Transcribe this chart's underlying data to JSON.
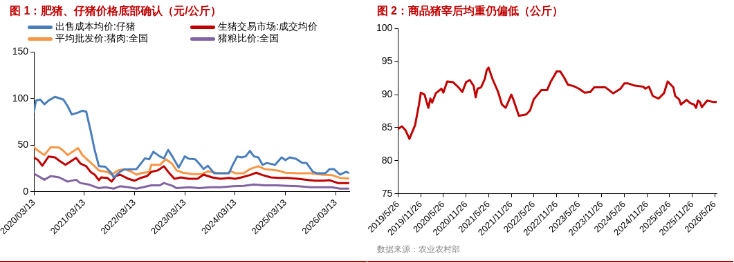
{
  "chart_data": [
    {
      "type": "line",
      "title": "图 1：肥猪、仔猪价格底部确认（元/公斤）",
      "legend": "top",
      "marker": "none",
      "grid": false,
      "xlim": [
        "2020-03-13",
        "2026-06-20"
      ],
      "ylim": [
        0,
        150
      ],
      "yticks": [
        0,
        50,
        100,
        150
      ],
      "xticks": [
        {
          "value": "2020-03-13",
          "label": "2020/03/13"
        },
        {
          "value": "2021-03-13",
          "label": "2021/03/13"
        },
        {
          "value": "2022-03-13",
          "label": "2022/03/13"
        },
        {
          "value": "2023-03-13",
          "label": "2023/03/13"
        },
        {
          "value": "2024-03-13",
          "label": "2024/03/13"
        },
        {
          "value": "2025-03-13",
          "label": "2025/03/13"
        },
        {
          "value": "2026-03-13",
          "label": "2026/03/13"
        }
      ],
      "series": [
        {
          "name": "出售成本均价:仔猪",
          "color": "#4a7ebb",
          "x": [
            "2020-03-13",
            "2020-03-28",
            "2020-04-28",
            "2020-05-28",
            "2020-06-28",
            "2020-08-13",
            "2020-10-13",
            "2020-11-13",
            "2020-12-13",
            "2021-01-28",
            "2021-02-28",
            "2021-03-28",
            "2021-04-28",
            "2021-05-28",
            "2021-06-28",
            "2021-08-13",
            "2021-09-28",
            "2021-10-13",
            "2021-11-28",
            "2021-12-28",
            "2022-03-28",
            "2022-04-13",
            "2022-05-28",
            "2022-06-28",
            "2022-07-28",
            "2022-09-13",
            "2022-10-13",
            "2022-11-13",
            "2022-12-13",
            "2023-01-28",
            "2023-03-13",
            "2023-04-13",
            "2023-05-28",
            "2023-06-28",
            "2023-07-28",
            "2023-08-28",
            "2023-10-13",
            "2023-11-28",
            "2024-01-28",
            "2024-02-28",
            "2024-03-28",
            "2024-04-28",
            "2024-05-28",
            "2024-06-28",
            "2024-07-28",
            "2024-08-28",
            "2024-09-28",
            "2024-10-28",
            "2024-12-28",
            "2025-02-13",
            "2025-03-13",
            "2025-04-13",
            "2025-05-28",
            "2025-07-13",
            "2025-08-13",
            "2025-09-28",
            "2025-10-28",
            "2025-12-28",
            "2026-01-28",
            "2026-02-28",
            "2026-04-13",
            "2026-05-28",
            "2026-06-13"
          ],
          "values": [
            86,
            98,
            99,
            94,
            98,
            102,
            99,
            92,
            83,
            85,
            87,
            86,
            66,
            45,
            27.5,
            27,
            20,
            15.5,
            21.5,
            24,
            24.5,
            27.5,
            36,
            35,
            43,
            38,
            36,
            45,
            38,
            26,
            38,
            35.5,
            35,
            30,
            24.5,
            28,
            20,
            20,
            20,
            30,
            38,
            37,
            38,
            44,
            38,
            37,
            29,
            31,
            29,
            37,
            34,
            37,
            35.5,
            31,
            31,
            21.5,
            20,
            20,
            24.5,
            24.5,
            18.5,
            21.5,
            20.5
          ]
        },
        {
          "name": "生猪交易市场:成交均价",
          "color": "#c00000",
          "x": [
            "2020-03-13",
            "2020-04-13",
            "2020-05-13",
            "2020-06-28",
            "2020-08-13",
            "2020-09-13",
            "2020-10-28",
            "2020-11-28",
            "2021-01-13",
            "2021-02-13",
            "2021-03-28",
            "2021-04-28",
            "2021-05-28",
            "2021-06-28",
            "2021-07-13",
            "2021-08-28",
            "2021-09-28",
            "2021-10-28",
            "2021-11-28",
            "2022-01-28",
            "2022-03-13",
            "2022-04-28",
            "2022-06-13",
            "2022-07-13",
            "2022-08-28",
            "2022-10-13",
            "2022-11-13",
            "2022-12-28",
            "2023-02-13",
            "2023-04-13",
            "2023-06-13",
            "2023-07-28",
            "2023-09-28",
            "2023-11-28",
            "2024-01-28",
            "2024-03-13",
            "2024-04-28",
            "2024-06-28",
            "2024-08-13",
            "2024-09-28",
            "2024-11-28",
            "2025-01-28",
            "2025-03-28",
            "2025-06-13",
            "2025-08-13",
            "2025-10-13",
            "2025-12-13",
            "2026-01-28",
            "2026-03-28",
            "2026-06-13"
          ],
          "values": [
            37,
            34,
            28,
            38,
            37,
            33.5,
            29,
            32,
            36.5,
            30.5,
            27.5,
            21.5,
            18.5,
            12.5,
            15.5,
            15,
            11,
            17,
            18.5,
            14,
            12,
            15,
            17,
            21.5,
            23,
            27.5,
            21.5,
            14,
            15.5,
            14,
            14,
            18.5,
            15.5,
            14,
            15,
            14,
            15.5,
            18,
            20.5,
            18,
            15.5,
            15,
            15,
            14,
            13,
            12,
            12,
            12.5,
            9.5,
            9.5
          ]
        },
        {
          "name": "平均批发价:猪肉:全国",
          "color": "#f79646",
          "x": [
            "2020-03-13",
            "2020-04-13",
            "2020-05-28",
            "2020-07-13",
            "2020-09-13",
            "2020-10-13",
            "2020-11-13",
            "2020-12-13",
            "2021-01-28",
            "2021-02-28",
            "2021-04-13",
            "2021-05-28",
            "2021-06-28",
            "2021-08-28",
            "2021-09-28",
            "2021-11-13",
            "2021-12-28",
            "2022-02-13",
            "2022-03-28",
            "2022-04-28",
            "2022-06-28",
            "2022-07-13",
            "2022-09-13",
            "2022-10-28",
            "2022-12-13",
            "2023-01-13",
            "2023-02-28",
            "2023-05-13",
            "2023-07-13",
            "2023-08-28",
            "2023-11-13",
            "2024-01-13",
            "2024-02-13",
            "2024-03-13",
            "2024-05-13",
            "2024-06-28",
            "2024-08-28",
            "2024-10-13",
            "2025-01-13",
            "2025-03-13",
            "2025-06-13",
            "2025-09-13",
            "2025-11-28",
            "2026-02-13",
            "2026-04-13",
            "2026-06-13"
          ],
          "values": [
            48,
            44,
            39.5,
            48,
            47.5,
            44,
            39.5,
            42.5,
            47,
            39.5,
            33.5,
            27.5,
            23,
            21.5,
            18.5,
            23,
            24.5,
            22,
            18.5,
            20,
            21.5,
            29,
            29,
            35,
            30,
            23,
            20.5,
            19,
            19,
            22,
            20,
            20,
            22,
            20,
            20,
            24.5,
            27.5,
            24.5,
            23,
            20.5,
            20,
            20,
            18.5,
            18,
            15,
            14.5
          ]
        },
        {
          "name": "猪粮比价:全国",
          "color": "#8064a2",
          "x": [
            "2020-03-13",
            "2020-04-13",
            "2020-05-28",
            "2020-07-13",
            "2020-09-13",
            "2020-11-13",
            "2021-01-13",
            "2021-02-13",
            "2021-04-13",
            "2021-06-28",
            "2021-08-13",
            "2021-10-13",
            "2021-11-28",
            "2022-01-28",
            "2022-03-28",
            "2022-05-13",
            "2022-07-13",
            "2022-09-13",
            "2022-10-13",
            "2022-12-13",
            "2023-01-13",
            "2023-04-13",
            "2023-06-28",
            "2023-09-13",
            "2023-11-28",
            "2024-02-28",
            "2024-05-13",
            "2024-07-28",
            "2024-10-13",
            "2025-01-13",
            "2025-03-28",
            "2025-06-13",
            "2025-09-13",
            "2025-11-28",
            "2026-02-13",
            "2026-04-13",
            "2026-06-13"
          ],
          "values": [
            19.5,
            17,
            13,
            17,
            15.5,
            11,
            13,
            9.5,
            8,
            4,
            5,
            3.5,
            6,
            5,
            3.5,
            5,
            7,
            7,
            9.5,
            6.5,
            4,
            5,
            4,
            5,
            5,
            6,
            6.5,
            8,
            7,
            7,
            6.5,
            6,
            5,
            5,
            5,
            3.5,
            3.5
          ]
        }
      ]
    },
    {
      "type": "line",
      "title": "图 2：商品猪宰后均重仍偏低（公斤）",
      "legend": false,
      "marker": "none",
      "grid": false,
      "xlim": [
        "2019-05-26",
        "2026-06-11"
      ],
      "ylim": [
        75,
        100
      ],
      "yticks": [
        75,
        80,
        85,
        90,
        95,
        100
      ],
      "xticks": [
        {
          "value": "2019-05-26",
          "label": "2019/5/26"
        },
        {
          "value": "2019-11-26",
          "label": "2019/11/26"
        },
        {
          "value": "2020-05-26",
          "label": "2020/5/26"
        },
        {
          "value": "2020-11-26",
          "label": "2020/11/26"
        },
        {
          "value": "2021-05-26",
          "label": "2021/5/26"
        },
        {
          "value": "2021-11-26",
          "label": "2021/11/26"
        },
        {
          "value": "2022-05-26",
          "label": "2022/5/26"
        },
        {
          "value": "2022-11-26",
          "label": "2022/11/26"
        },
        {
          "value": "2023-05-26",
          "label": "2023/5/26"
        },
        {
          "value": "2023-11-26",
          "label": "2023/11/26"
        },
        {
          "value": "2024-05-26",
          "label": "2024/5/26"
        },
        {
          "value": "2024-11-26",
          "label": "2024/11/26"
        },
        {
          "value": "2025-05-26",
          "label": "2025/5/26"
        },
        {
          "value": "2025-11-26",
          "label": "2025/11/26"
        },
        {
          "value": "2026-05-26",
          "label": "2026/5/26"
        }
      ],
      "annotations": [
        "数据来源：农业农村部"
      ],
      "series": [
        {
          "color": "#c00000",
          "x": [
            "2019-05-26",
            "2019-06-26",
            "2019-07-26",
            "2019-08-26",
            "2019-10-11",
            "2019-11-11",
            "2019-11-26",
            "2019-12-26",
            "2020-01-26",
            "2020-02-11",
            "2020-02-26",
            "2020-03-26",
            "2020-05-11",
            "2020-05-26",
            "2020-06-26",
            "2020-08-11",
            "2020-09-26",
            "2020-10-26",
            "2020-11-26",
            "2020-12-26",
            "2021-01-26",
            "2021-02-11",
            "2021-02-26",
            "2021-03-26",
            "2021-04-26",
            "2021-05-11",
            "2021-05-26",
            "2021-06-26",
            "2021-08-11",
            "2021-09-11",
            "2021-10-11",
            "2021-11-26",
            "2021-12-11",
            "2022-01-11",
            "2022-01-26",
            "2022-03-26",
            "2022-04-26",
            "2022-05-26",
            "2022-06-26",
            "2022-07-26",
            "2022-09-11",
            "2022-10-11",
            "2022-11-11",
            "2022-11-26",
            "2022-12-26",
            "2023-01-26",
            "2023-02-26",
            "2023-04-11",
            "2023-05-26",
            "2023-07-11",
            "2023-08-26",
            "2023-09-26",
            "2023-12-26",
            "2024-02-26",
            "2024-04-26",
            "2024-05-26",
            "2024-06-26",
            "2024-08-11",
            "2024-10-26",
            "2024-11-11",
            "2024-12-11",
            "2025-01-11",
            "2025-02-26",
            "2025-04-11",
            "2025-05-11",
            "2025-06-26",
            "2025-07-11",
            "2025-08-11",
            "2025-08-26",
            "2025-10-11",
            "2025-11-11",
            "2025-12-11",
            "2025-12-26",
            "2026-01-11",
            "2026-01-26",
            "2026-02-11",
            "2026-03-26",
            "2026-05-11",
            "2026-06-11"
          ],
          "values": [
            84.8,
            85.2,
            84.6,
            83.3,
            85.4,
            88.5,
            90.3,
            90.0,
            88.0,
            89.4,
            88.8,
            90.2,
            90.9,
            90.3,
            92.0,
            91.9,
            91.1,
            90.4,
            91.9,
            92.2,
            91.3,
            89.6,
            90.9,
            91.1,
            92.4,
            93.7,
            94.1,
            92.4,
            90.4,
            88.5,
            88.0,
            90.0,
            89.3,
            87.6,
            86.8,
            87.0,
            87.6,
            89.3,
            90.0,
            90.7,
            90.7,
            92.0,
            93.0,
            93.5,
            93.5,
            92.6,
            91.5,
            91.3,
            90.9,
            90.3,
            90.4,
            91.1,
            91.1,
            90.2,
            90.9,
            91.7,
            91.7,
            91.4,
            91.2,
            90.9,
            91.2,
            89.8,
            89.4,
            90.2,
            92.0,
            91.1,
            89.8,
            89.3,
            88.5,
            89.2,
            88.7,
            88.5,
            88.0,
            89.1,
            88.9,
            88.1,
            89.1,
            88.9,
            88.9
          ]
        }
      ]
    }
  ]
}
